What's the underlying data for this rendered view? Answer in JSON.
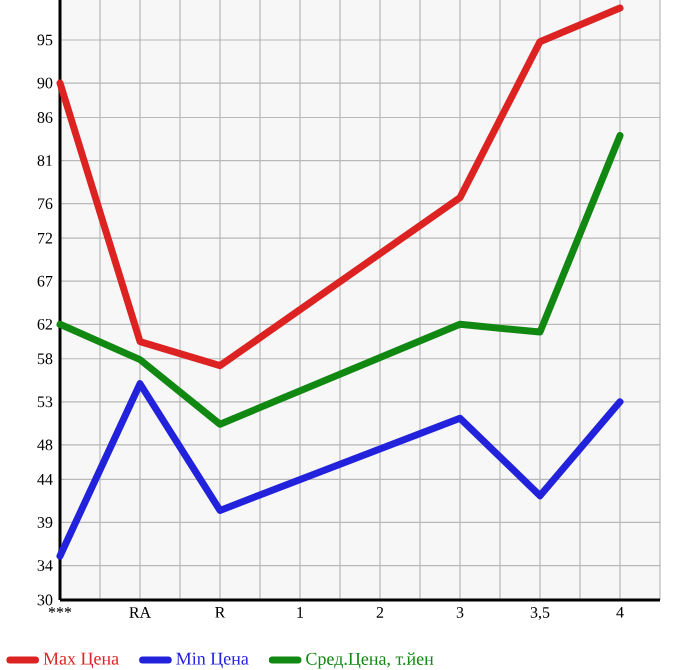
{
  "chart_data": {
    "type": "line",
    "categories": [
      "***",
      "RA",
      "R",
      "1",
      "2",
      "3",
      "3,5",
      "4"
    ],
    "series": [
      {
        "name": "Max Цена",
        "color": "#dd2222",
        "values": [
          90,
          60,
          57.2,
          null,
          null,
          76.7,
          94.8,
          98.7
        ]
      },
      {
        "name": "Min Цена",
        "color": "#2222dd",
        "values": [
          35.1,
          55.1,
          40.4,
          null,
          null,
          51.1,
          42.1,
          53.0
        ]
      },
      {
        "name": "Сред.Цена, т.йен",
        "color": "#118811",
        "values": [
          62.0,
          57.9,
          50.4,
          null,
          null,
          62.0,
          61.1,
          83.9
        ]
      }
    ],
    "ylim": [
      30,
      99.64
    ],
    "yticks": [
      30,
      34,
      39,
      44,
      48,
      53,
      58,
      62,
      67,
      72,
      76,
      81,
      86,
      90,
      95
    ],
    "grid": true,
    "legend": "bottom",
    "marker": "none",
    "line_style": "solid"
  }
}
